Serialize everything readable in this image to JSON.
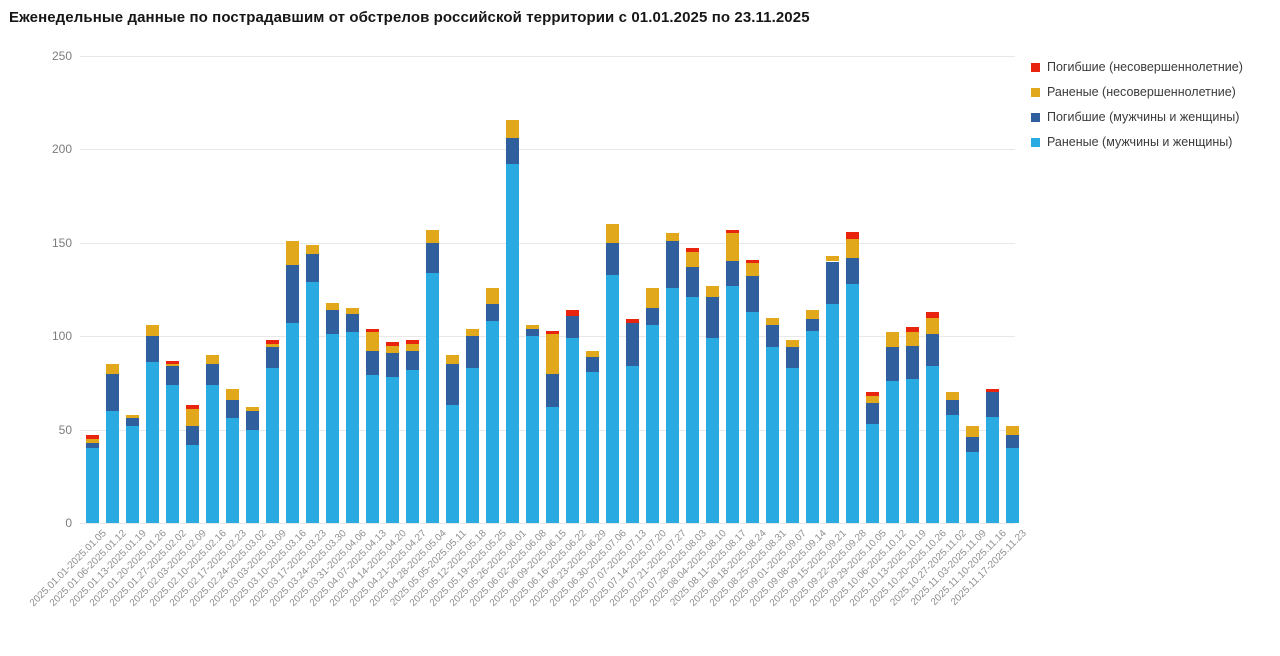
{
  "chart_data": {
    "type": "bar",
    "stacked": true,
    "title": "Еженедельные данные по пострадавшим от обстрелов российской территории с 01.01.2025 по 23.11.2025",
    "xlabel": "",
    "ylabel": "",
    "ylim": [
      0,
      250
    ],
    "y_ticks": [
      0,
      50,
      100,
      150,
      200,
      250
    ],
    "grid": true,
    "legend_position": "top-right",
    "categories": [
      "2025.01.01-2025.01.05",
      "2025.01.06-2025.01.12",
      "2025.01.13-2025.01.19",
      "2025.01.20-2025.01.26",
      "2025.01.27-2025.02.02",
      "2025.02.03-2025.02.09",
      "2025.02.10-2025.02.16",
      "2025.02.17-2025.02.23",
      "2025.02.24-2025.03.02",
      "2025.03.03-2025.03.09",
      "2025.03.10-2025.03.16",
      "2025.03.17-2025.03.23",
      "2025.03.24-2025.03.30",
      "2025.03.31-2025.04.06",
      "2025.04.07-2025.04.13",
      "2025.04.14-2025.04.20",
      "2025.04.21-2025.04.27",
      "2025.04.28-2025.05.04",
      "2025.05.05-2025.05.11",
      "2025.05.12-2025.05.18",
      "2025.05.19-2025.05.25",
      "2025.05.26-2025.06.01",
      "2025.06.02-2025.06.08",
      "2025.06.09-2025.06.15",
      "2025.06.16-2025.06.22",
      "2025.06.23-2025.06.29",
      "2025.06.30-2025.07.06",
      "2025.07.07-2025.07.13",
      "2025.07.14-2025.07.20",
      "2025.07.21-2025.07.27",
      "2025.07.28-2025.08.03",
      "2025.08.04-2025.08.10",
      "2025.08.11-2025.08.17",
      "2025.08.18-2025.08.24",
      "2025.08.25-2025.08.31",
      "2025.09.01-2025.09.07",
      "2025.09.08-2025.09.14",
      "2025.09.15-2025.09.21",
      "2025.09.22-2025.09.28",
      "2025.09.29-2025.10.05",
      "2025.10.06-2025.10.12",
      "2025.10.13-2025.10.19",
      "2025.10.20-2025.10.26",
      "2025.10.27-2025.11.02",
      "2025.11.03-2025.11.09",
      "2025.11.10-2025.11.16",
      "2025.11.17-2025.11.23"
    ],
    "series": [
      {
        "name": "Раненые (мужчины и женщины)",
        "color": "#29abe2",
        "values": [
          40,
          60,
          52,
          86,
          74,
          42,
          74,
          56,
          50,
          83,
          107,
          129,
          101,
          102,
          79,
          78,
          82,
          134,
          63,
          83,
          108,
          192,
          100,
          62,
          99,
          81,
          133,
          84,
          106,
          126,
          121,
          99,
          127,
          113,
          94,
          83,
          103,
          117,
          128,
          53,
          76,
          77,
          84,
          58,
          38,
          57,
          40
        ]
      },
      {
        "name": "Погибшие (мужчины и женщины)",
        "color": "#2f5f9c",
        "values": [
          3,
          20,
          4,
          14,
          10,
          10,
          11,
          10,
          10,
          11,
          31,
          15,
          13,
          10,
          13,
          13,
          10,
          16,
          22,
          17,
          9,
          14,
          4,
          18,
          12,
          8,
          17,
          23,
          9,
          25,
          16,
          22,
          13,
          19,
          12,
          11,
          6,
          23,
          14,
          11,
          18,
          18,
          17,
          8,
          8,
          13,
          7
        ]
      },
      {
        "name": "Раненые (несовершеннолетние)",
        "color": "#e2a81c",
        "values": [
          2,
          5,
          2,
          6,
          1,
          9,
          5,
          6,
          2,
          2,
          13,
          5,
          4,
          3,
          10,
          4,
          4,
          7,
          5,
          4,
          9,
          10,
          2,
          21,
          0,
          3,
          10,
          0,
          11,
          4,
          8,
          6,
          15,
          7,
          4,
          4,
          5,
          3,
          10,
          4,
          8,
          7,
          9,
          4,
          6,
          0,
          5
        ]
      },
      {
        "name": "Погибшие (несовершеннолетние)",
        "color": "#e8230e",
        "values": [
          2,
          0,
          0,
          0,
          2,
          2,
          0,
          0,
          0,
          2,
          0,
          0,
          0,
          0,
          2,
          2,
          2,
          0,
          0,
          0,
          0,
          0,
          0,
          2,
          3,
          0,
          0,
          2,
          0,
          0,
          2,
          0,
          2,
          2,
          0,
          0,
          0,
          0,
          4,
          2,
          0,
          3,
          3,
          0,
          0,
          2,
          0
        ]
      }
    ],
    "legend": [
      {
        "name": "Погибшие (несовершеннолетние)",
        "color": "#e8230e"
      },
      {
        "name": "Раненые (несовершеннолетние)",
        "color": "#e2a81c"
      },
      {
        "name": "Погибшие (мужчины и женщины)",
        "color": "#2f5f9c"
      },
      {
        "name": "Раненые (мужчины и женщины)",
        "color": "#29abe2"
      }
    ]
  },
  "style": {
    "grid_color": "#e8e8e8",
    "y_tick_color": "#7c7c7c",
    "x_tick_color": "#8f8f8f",
    "title_color": "#161616",
    "background": "#ffffff"
  }
}
